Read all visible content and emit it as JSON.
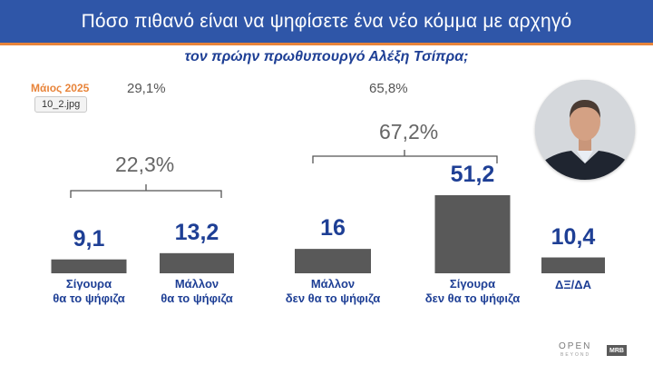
{
  "header": {
    "title": "Πόσο πιθανό είναι να ψηφίσετε ένα νέο κόμμα με αρχηγό"
  },
  "subtitle": "τον πρώην πρωθυπουργό Αλέξη Τσίπρα;",
  "date_label": "Μάιος 2025",
  "file_chip": "10_2.jpg",
  "top_percents": {
    "left": "29,1%",
    "right": "65,8%"
  },
  "groups": {
    "left_total": "22,3%",
    "right_total": "67,2%"
  },
  "brand": {
    "name": "OPEN",
    "sub": "BEYOND",
    "box": "MRB"
  },
  "colors": {
    "header": "#2f56a8",
    "accent": "#e8843a",
    "bar": "#595959",
    "value_text": "#1e3f95"
  },
  "chart_data": {
    "type": "bar",
    "title": "Πόσο πιθανό είναι να ψηφίσετε ένα νέο κόμμα με αρχηγό τον πρώην πρωθυπουργό Αλέξη Τσίπρα;",
    "categories": [
      [
        "Σίγουρα",
        "θα το ψήφιζα"
      ],
      [
        "Μάλλον",
        "θα το ψήφιζα"
      ],
      [
        "Μάλλον",
        "δεν θα το ψήφιζα"
      ],
      [
        "Σίγουρα",
        "δεν θα το ψήφιζα"
      ],
      [
        "ΔΞ/ΔΑ"
      ]
    ],
    "values": [
      9.1,
      13.2,
      16,
      51.2,
      10.4
    ],
    "value_labels": [
      "9,1",
      "13,2",
      "16",
      "51,2",
      "10,4"
    ],
    "ylim": [
      0,
      55
    ],
    "grid": false,
    "legend": "none"
  }
}
